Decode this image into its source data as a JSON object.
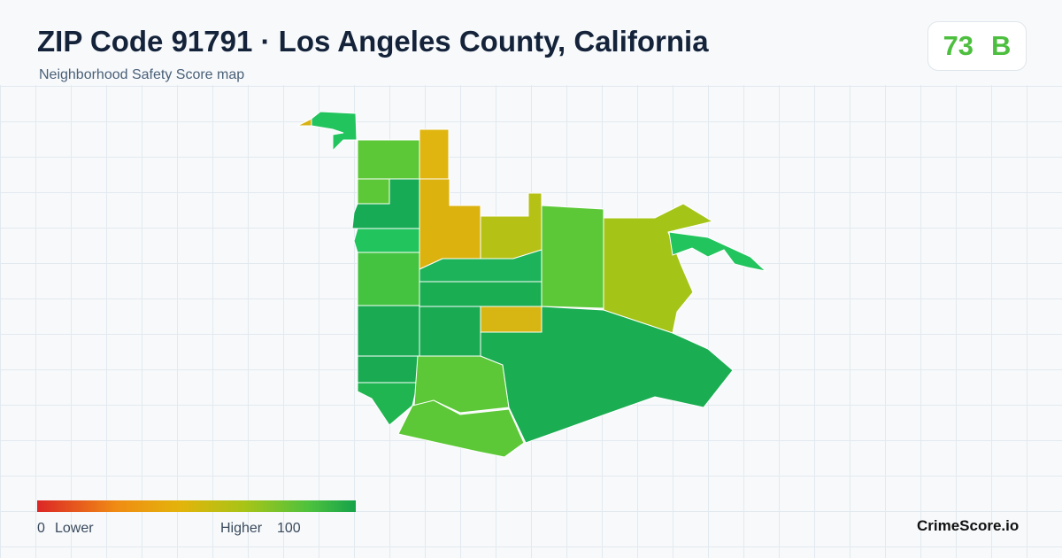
{
  "header": {
    "title": "ZIP Code 91791 · Los Angeles County, California",
    "subtitle": "Neighborhood Safety Score map"
  },
  "badge": {
    "score": 73,
    "grade": "B"
  },
  "legend": {
    "min": 0,
    "low_label": "Lower",
    "high_label": "Higher",
    "max": 100
  },
  "footer": {
    "brand": "CrimeScore.io"
  }
}
